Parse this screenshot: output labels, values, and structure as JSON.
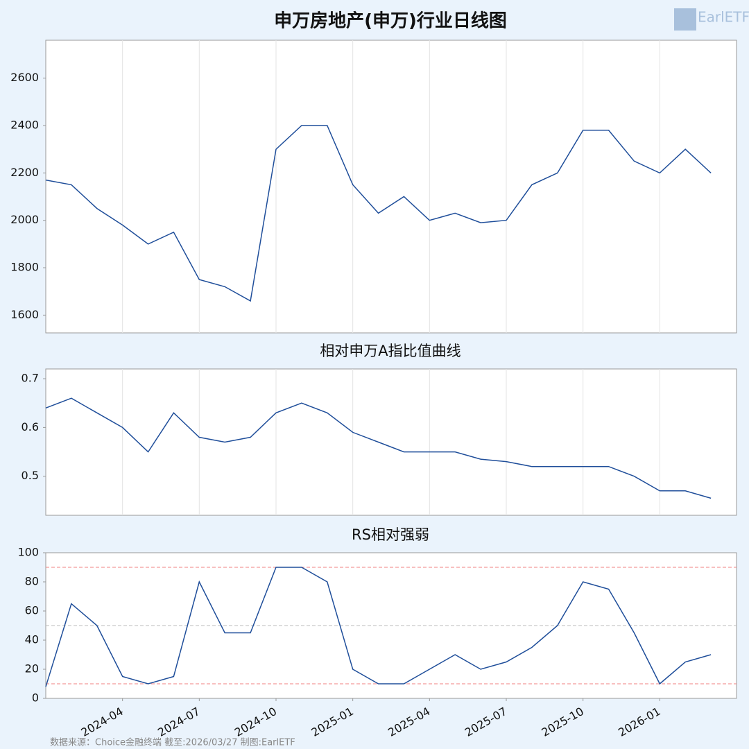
{
  "title": "申万房地产(申万)行业日线图",
  "logo": "EarlETF",
  "footer": "数据来源：Choice金融终端 截至:2026/03/27 制图:EarlETF",
  "chart_data": [
    {
      "type": "line",
      "ylim": [
        1525,
        2760
      ],
      "yticks": [
        1600,
        1800,
        2000,
        2200,
        2400,
        2600
      ],
      "grid": true,
      "xlim": [
        "2024-01",
        "2026-04"
      ],
      "x": [
        "2024-01",
        "2024-02",
        "2024-03",
        "2024-04",
        "2024-05",
        "2024-06",
        "2024-07",
        "2024-08",
        "2024-09",
        "2024-10",
        "2024-11",
        "2024-12",
        "2025-01",
        "2025-02",
        "2025-03",
        "2025-04",
        "2025-05",
        "2025-06",
        "2025-07",
        "2025-08",
        "2025-09",
        "2025-10",
        "2025-11",
        "2025-12",
        "2026-01",
        "2026-02",
        "2026-03"
      ],
      "color": "#1f4e9a",
      "values": [
        2170,
        2150,
        2050,
        1980,
        1900,
        1950,
        1750,
        1720,
        1660,
        2300,
        2400,
        2400,
        2150,
        2030,
        2100,
        2000,
        2030,
        1990,
        2000,
        2150,
        2200,
        2380,
        2380,
        2250,
        2200,
        2300,
        2200
      ]
    },
    {
      "type": "line",
      "title": "相对申万A指比值曲线",
      "ylim": [
        0.42,
        0.72
      ],
      "yticks": [
        0.5,
        0.6,
        0.7
      ],
      "grid": true,
      "xlim": [
        "2024-01",
        "2026-04"
      ],
      "x": [
        "2024-01",
        "2024-02",
        "2024-03",
        "2024-04",
        "2024-05",
        "2024-06",
        "2024-07",
        "2024-08",
        "2024-09",
        "2024-10",
        "2024-11",
        "2024-12",
        "2025-01",
        "2025-02",
        "2025-03",
        "2025-04",
        "2025-05",
        "2025-06",
        "2025-07",
        "2025-08",
        "2025-09",
        "2025-10",
        "2025-11",
        "2025-12",
        "2026-01",
        "2026-02",
        "2026-03"
      ],
      "color": "#1f4e9a",
      "values": [
        0.64,
        0.66,
        0.63,
        0.6,
        0.55,
        0.63,
        0.58,
        0.57,
        0.58,
        0.63,
        0.65,
        0.63,
        0.59,
        0.57,
        0.55,
        0.55,
        0.55,
        0.535,
        0.53,
        0.52,
        0.52,
        0.52,
        0.52,
        0.5,
        0.47,
        0.47,
        0.455
      ]
    },
    {
      "type": "line",
      "title": "RS相对强弱",
      "ylim": [
        0,
        100
      ],
      "yticks": [
        0,
        20,
        40,
        60,
        80,
        100
      ],
      "xlim": [
        "2024-01",
        "2026-04"
      ],
      "xticks": [
        "2024-04",
        "2024-07",
        "2024-10",
        "2025-01",
        "2025-04",
        "2025-07",
        "2025-10",
        "2026-01"
      ],
      "x": [
        "2024-01",
        "2024-02",
        "2024-03",
        "2024-04",
        "2024-05",
        "2024-06",
        "2024-07",
        "2024-08",
        "2024-09",
        "2024-10",
        "2024-11",
        "2024-12",
        "2025-01",
        "2025-02",
        "2025-03",
        "2025-04",
        "2025-05",
        "2025-06",
        "2025-07",
        "2025-08",
        "2025-09",
        "2025-10",
        "2025-11",
        "2025-12",
        "2026-01",
        "2026-02",
        "2026-03"
      ],
      "color": "#1f4e9a",
      "values": [
        8,
        65,
        50,
        15,
        10,
        15,
        80,
        45,
        45,
        90,
        90,
        80,
        20,
        10,
        10,
        20,
        30,
        20,
        25,
        35,
        50,
        80,
        75,
        45,
        10,
        25,
        30
      ],
      "reference_lines": [
        {
          "value": 90,
          "color": "#f08080"
        },
        {
          "value": 50,
          "color": "#bbbbbb"
        },
        {
          "value": 10,
          "color": "#f08080"
        }
      ]
    }
  ]
}
